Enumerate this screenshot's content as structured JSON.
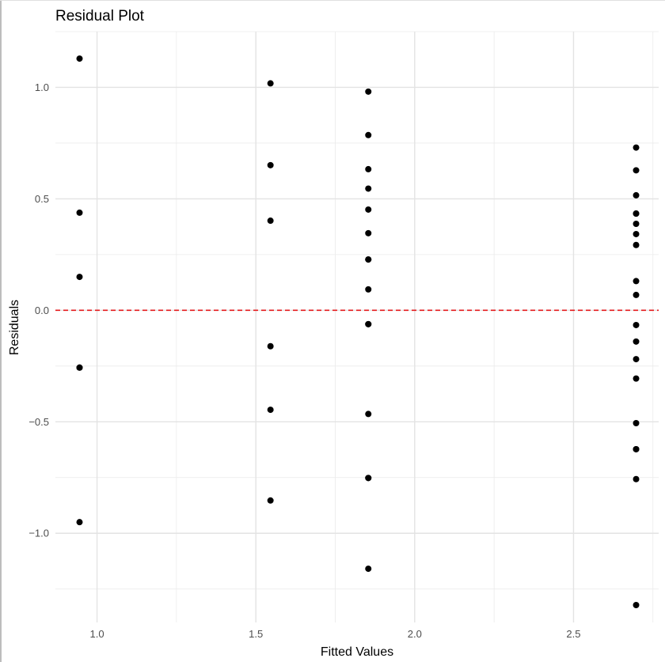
{
  "chart_data": {
    "type": "scatter",
    "title": "Residual Plot",
    "xlabel": "Fitted Values",
    "ylabel": "Residuals",
    "xlim": [
      0.869,
      2.768
    ],
    "ylim": [
      -1.4,
      1.25
    ],
    "x_ticks": [
      1.0,
      1.5,
      2.0,
      2.5
    ],
    "x_tick_labels": [
      "1.0",
      "1.5",
      "2.0",
      "2.5"
    ],
    "y_ticks": [
      -1.0,
      -0.5,
      0.0,
      0.5,
      1.0
    ],
    "y_tick_labels": [
      "−1.0",
      "−0.5",
      "0.0",
      "0.5",
      "1.0"
    ],
    "grid": true,
    "reference_line": {
      "y": 0.0,
      "style": "dashed",
      "color": "#e41a1c"
    },
    "point_color": "#000000",
    "points": [
      {
        "x": 0.945,
        "y": 1.129
      },
      {
        "x": 0.945,
        "y": 0.438
      },
      {
        "x": 0.945,
        "y": 0.15
      },
      {
        "x": 0.945,
        "y": -0.257
      },
      {
        "x": 0.945,
        "y": -0.257
      },
      {
        "x": 0.945,
        "y": -0.95
      },
      {
        "x": 1.546,
        "y": 1.018
      },
      {
        "x": 1.546,
        "y": 0.651
      },
      {
        "x": 1.546,
        "y": 0.402
      },
      {
        "x": 1.546,
        "y": -0.161
      },
      {
        "x": 1.546,
        "y": -0.446
      },
      {
        "x": 1.546,
        "y": -0.853
      },
      {
        "x": 1.854,
        "y": 0.981
      },
      {
        "x": 1.854,
        "y": 0.786
      },
      {
        "x": 1.854,
        "y": 0.633
      },
      {
        "x": 1.854,
        "y": 0.546
      },
      {
        "x": 1.854,
        "y": 0.452
      },
      {
        "x": 1.854,
        "y": 0.346
      },
      {
        "x": 1.854,
        "y": 0.228
      },
      {
        "x": 1.854,
        "y": 0.228
      },
      {
        "x": 1.854,
        "y": 0.094
      },
      {
        "x": 1.854,
        "y": -0.062
      },
      {
        "x": 1.854,
        "y": -0.062
      },
      {
        "x": 1.854,
        "y": -0.465
      },
      {
        "x": 1.854,
        "y": -0.752
      },
      {
        "x": 1.854,
        "y": -0.752
      },
      {
        "x": 1.854,
        "y": -1.159
      },
      {
        "x": 2.697,
        "y": 0.73
      },
      {
        "x": 2.697,
        "y": 0.628
      },
      {
        "x": 2.697,
        "y": 0.516
      },
      {
        "x": 2.697,
        "y": 0.434
      },
      {
        "x": 2.697,
        "y": 0.434
      },
      {
        "x": 2.697,
        "y": 0.388
      },
      {
        "x": 2.697,
        "y": 0.342
      },
      {
        "x": 2.697,
        "y": 0.293
      },
      {
        "x": 2.697,
        "y": 0.131
      },
      {
        "x": 2.697,
        "y": 0.069
      },
      {
        "x": 2.697,
        "y": -0.066
      },
      {
        "x": 2.697,
        "y": -0.14
      },
      {
        "x": 2.697,
        "y": -0.219
      },
      {
        "x": 2.697,
        "y": -0.306
      },
      {
        "x": 2.697,
        "y": -0.506
      },
      {
        "x": 2.697,
        "y": -0.623
      },
      {
        "x": 2.697,
        "y": -0.623
      },
      {
        "x": 2.697,
        "y": -0.757
      },
      {
        "x": 2.697,
        "y": -1.322
      }
    ]
  }
}
